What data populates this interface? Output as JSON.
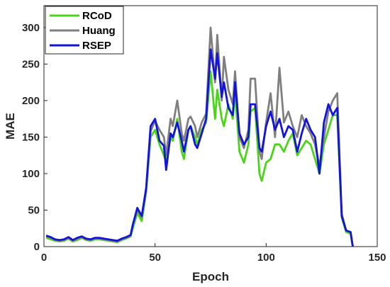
{
  "chart_data": {
    "type": "line",
    "title": "",
    "xlabel": "Epoch",
    "ylabel": "MAE",
    "xlim": [
      0,
      150
    ],
    "ylim": [
      0,
      330
    ],
    "xticks": [
      0,
      50,
      100,
      150
    ],
    "yticks": [
      0,
      50,
      100,
      150,
      200,
      250,
      300
    ],
    "grid": false,
    "legend_position": "top-left",
    "series": [
      {
        "name": "RCoD",
        "color": "#4bd41a",
        "x": [
          1,
          3,
          5,
          7,
          9,
          11,
          13,
          15,
          17,
          19,
          21,
          23,
          25,
          27,
          29,
          31,
          33,
          35,
          37,
          39,
          40,
          42,
          44,
          46,
          48,
          50,
          52,
          54,
          55,
          57,
          58,
          60,
          62,
          63,
          65,
          66,
          68,
          69,
          71,
          73,
          75,
          77,
          78,
          80,
          81,
          83,
          85,
          86,
          88,
          90,
          92,
          93,
          95,
          97,
          98,
          100,
          102,
          104,
          106,
          108,
          110,
          112,
          114,
          116,
          118,
          120,
          122,
          124,
          126,
          128,
          130,
          132,
          134,
          136,
          138,
          139
        ],
        "y": [
          12,
          10,
          8,
          7,
          8,
          11,
          7,
          9,
          12,
          9,
          8,
          10,
          10,
          9,
          8,
          7,
          6,
          9,
          11,
          14,
          25,
          46,
          35,
          75,
          150,
          160,
          140,
          125,
          115,
          150,
          145,
          175,
          130,
          120,
          160,
          165,
          150,
          140,
          160,
          170,
          240,
          175,
          215,
          175,
          165,
          195,
          175,
          210,
          130,
          115,
          140,
          185,
          190,
          100,
          90,
          115,
          120,
          140,
          140,
          130,
          145,
          155,
          125,
          135,
          145,
          140,
          120,
          100,
          140,
          160,
          180,
          180,
          40,
          20,
          18,
          0
        ]
      },
      {
        "name": "Huang",
        "color": "#7f7f7f",
        "x": [
          1,
          3,
          5,
          7,
          9,
          11,
          13,
          15,
          17,
          19,
          21,
          23,
          25,
          27,
          29,
          31,
          33,
          35,
          37,
          39,
          40,
          42,
          44,
          46,
          48,
          50,
          52,
          54,
          55,
          57,
          58,
          60,
          62,
          63,
          65,
          66,
          68,
          69,
          71,
          73,
          75,
          77,
          78,
          80,
          81,
          83,
          85,
          86,
          88,
          90,
          92,
          93,
          95,
          97,
          98,
          100,
          102,
          104,
          106,
          108,
          110,
          112,
          114,
          116,
          118,
          120,
          122,
          124,
          126,
          128,
          130,
          132,
          134,
          136,
          138,
          139
        ],
        "y": [
          14,
          12,
          9,
          8,
          9,
          12,
          8,
          11,
          13,
          10,
          9,
          11,
          11,
          10,
          9,
          8,
          7,
          10,
          12,
          15,
          30,
          50,
          40,
          78,
          158,
          172,
          160,
          150,
          125,
          175,
          165,
          200,
          155,
          145,
          175,
          178,
          165,
          150,
          170,
          182,
          300,
          225,
          290,
          200,
          260,
          215,
          195,
          240,
          150,
          135,
          160,
          230,
          230,
          130,
          120,
          170,
          210,
          150,
          245,
          170,
          185,
          165,
          150,
          180,
          165,
          155,
          140,
          110,
          150,
          185,
          200,
          210,
          45,
          22,
          20,
          0
        ]
      },
      {
        "name": "RSEP",
        "color": "#1414d8",
        "x": [
          1,
          3,
          5,
          7,
          9,
          11,
          13,
          15,
          17,
          19,
          21,
          23,
          25,
          27,
          29,
          31,
          33,
          35,
          37,
          39,
          40,
          42,
          44,
          46,
          48,
          50,
          52,
          54,
          55,
          57,
          58,
          60,
          62,
          63,
          65,
          66,
          68,
          69,
          71,
          73,
          75,
          77,
          78,
          80,
          81,
          83,
          85,
          86,
          88,
          90,
          92,
          93,
          95,
          97,
          98,
          100,
          102,
          104,
          106,
          108,
          110,
          112,
          114,
          116,
          118,
          120,
          122,
          124,
          126,
          128,
          130,
          132,
          134,
          136,
          138,
          139
        ],
        "y": [
          15,
          13,
          10,
          9,
          10,
          13,
          9,
          12,
          14,
          11,
          10,
          12,
          12,
          11,
          10,
          9,
          8,
          11,
          13,
          16,
          30,
          53,
          42,
          80,
          165,
          175,
          145,
          138,
          105,
          155,
          150,
          170,
          145,
          130,
          160,
          165,
          140,
          135,
          155,
          175,
          270,
          230,
          265,
          205,
          225,
          190,
          180,
          225,
          155,
          140,
          150,
          195,
          195,
          135,
          130,
          165,
          185,
          160,
          175,
          150,
          165,
          160,
          130,
          155,
          175,
          160,
          150,
          100,
          170,
          195,
          180,
          190,
          42,
          22,
          20,
          0
        ]
      }
    ]
  }
}
